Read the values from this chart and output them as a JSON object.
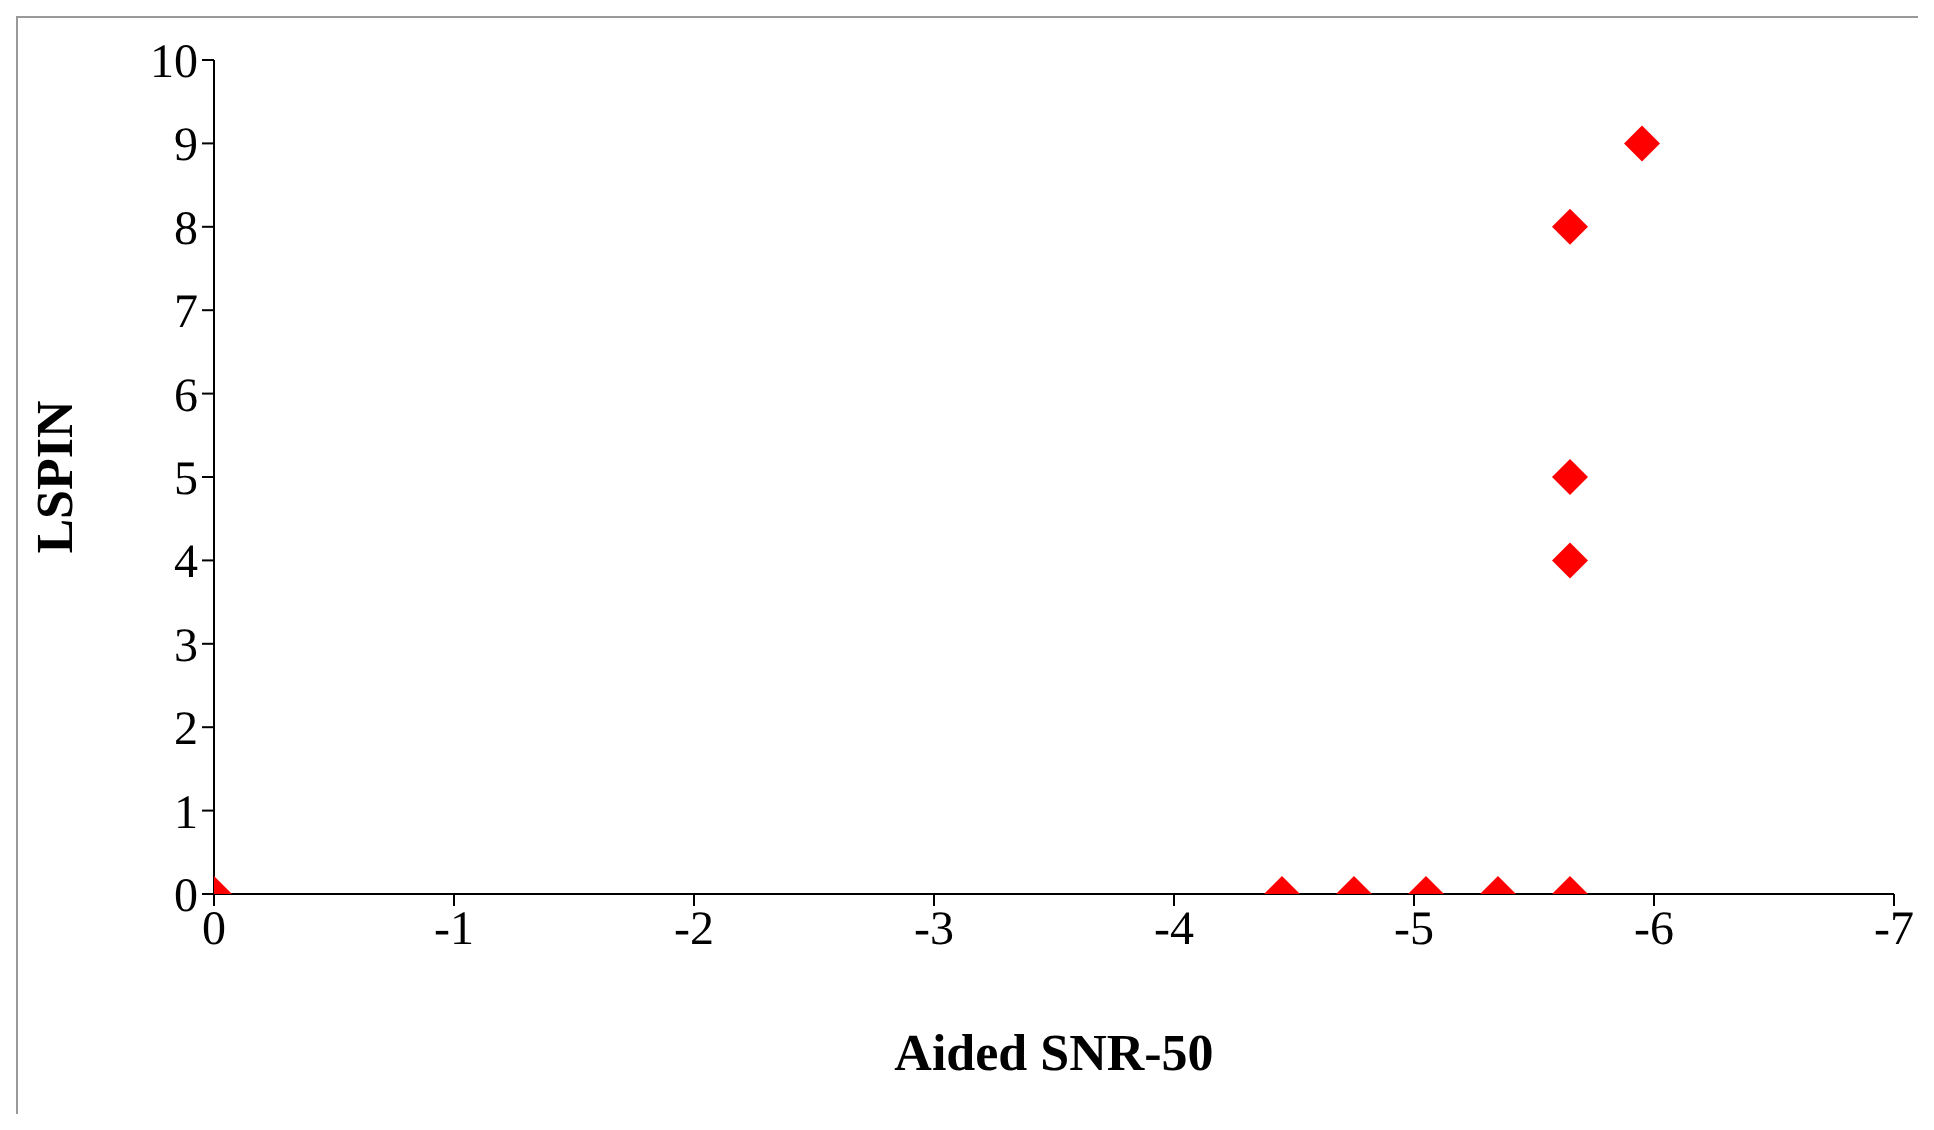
{
  "chart_data": {
    "type": "scatter",
    "xlabel": "Aided SNR-50",
    "ylabel": "LSPIN",
    "x": [
      0,
      -4.45,
      -4.75,
      -5.05,
      -5.35,
      -5.65,
      -5.65,
      -5.65,
      -5.65,
      -5.95
    ],
    "series": [
      {
        "color": "#ff0000",
        "values": [
          0,
          0,
          0,
          0,
          0,
          0,
          4,
          5,
          8,
          9
        ]
      }
    ],
    "xlim": [
      0,
      -7
    ],
    "xticks": [
      0,
      -1,
      -2,
      -3,
      -4,
      -5,
      -6,
      -7
    ],
    "ylim": [
      0,
      10
    ],
    "yticks": [
      0,
      1,
      2,
      3,
      4,
      5,
      6,
      7,
      8,
      9,
      10
    ],
    "grid": false,
    "legend": false,
    "marker": "diamond"
  }
}
